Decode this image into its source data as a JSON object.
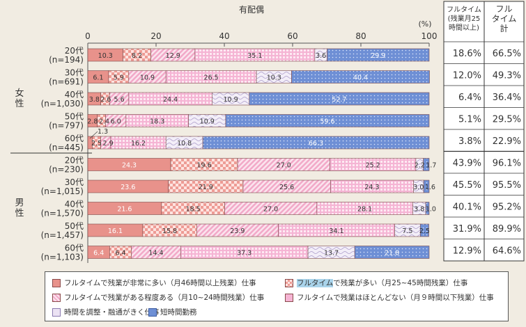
{
  "chart_data": {
    "type": "bar",
    "orientation": "horizontal",
    "stacked": true,
    "title": "有配偶",
    "unit_label": "(%)",
    "xlim": [
      0,
      100
    ],
    "x_ticks": [
      0,
      20,
      40,
      60,
      80,
      100
    ],
    "groups": [
      {
        "label": "女\n性",
        "rows": [
          {
            "age": "20代",
            "n": "(n=194)",
            "values": [
              10.3,
              8.2,
              12.9,
              35.1,
              3.6,
              29.9
            ]
          },
          {
            "age": "30代",
            "n": "(n=691)",
            "values": [
              6.1,
              5.9,
              10.9,
              26.5,
              10.3,
              40.4
            ]
          },
          {
            "age": "40代",
            "n": "(n=1,030)",
            "values": [
              3.8,
              2.6,
              5.6,
              24.4,
              10.9,
              52.7
            ]
          },
          {
            "age": "50代",
            "n": "(n=797)",
            "values": [
              2.8,
              2.4,
              6.0,
              18.3,
              10.9,
              59.6
            ]
          },
          {
            "age": "60代",
            "n": "(n=445)",
            "values": [
              1.3,
              2.5,
              2.9,
              16.2,
              10.8,
              66.3
            ]
          }
        ]
      },
      {
        "label": "男\n性",
        "rows": [
          {
            "age": "20代",
            "n": "(n=230)",
            "values": [
              24.3,
              19.6,
              27.0,
              25.2,
              2.2,
              1.7
            ]
          },
          {
            "age": "30代",
            "n": "(n=1,015)",
            "values": [
              23.6,
              21.9,
              25.6,
              24.3,
              3.0,
              1.6
            ]
          },
          {
            "age": "40代",
            "n": "(n=1,570)",
            "values": [
              21.6,
              18.5,
              27.0,
              28.1,
              3.8,
              1.0
            ]
          },
          {
            "age": "50代",
            "n": "(n=1,457)",
            "values": [
              16.1,
              15.8,
              23.9,
              34.1,
              7.5,
              2.5
            ]
          },
          {
            "age": "60代",
            "n": "(n=1,103)",
            "values": [
              6.4,
              6.4,
              14.4,
              37.3,
              13.7,
              21.8
            ]
          }
        ]
      }
    ],
    "series": [
      {
        "name": "フルタイムで残業が非常に多い（月46時間以上残業）仕事",
        "color": "#e8928b",
        "pattern": "solid"
      },
      {
        "name_highlight": "フルタイム",
        "name": "で残業が多い（月25~45時間残業）仕事",
        "color": "#f0a29c",
        "pattern": "checker"
      },
      {
        "name": "フルタイムで残業がある程度ある（月10~24時間残業）仕事",
        "color": "#f5b9d2",
        "pattern": "diagonal"
      },
      {
        "name": "フルタイムで残業はほとんどない（月９時間以下残業）仕事",
        "color": "#f5b4d4",
        "pattern": "grid"
      },
      {
        "name": "時間を調整・融通がきく仕事",
        "color": "#ece3f4",
        "pattern": "wave"
      },
      {
        "name": "短時間勤務",
        "color": "#6e8fd5",
        "pattern": "dots"
      }
    ],
    "table": {
      "headers": [
        "フルタイム\n(残業月25\n時間以上)",
        "フル\nタイム\n計"
      ],
      "rows": [
        [
          "18.6%",
          "66.5%"
        ],
        [
          "12.0%",
          "49.3%"
        ],
        [
          "6.4%",
          "36.4%"
        ],
        [
          "5.1%",
          "29.5%"
        ],
        [
          "3.8%",
          "22.9%"
        ],
        [
          "43.9%",
          "96.1%"
        ],
        [
          "45.5%",
          "95.5%"
        ],
        [
          "40.1%",
          "95.2%"
        ],
        [
          "31.9%",
          "89.9%"
        ],
        [
          "12.9%",
          "64.6%"
        ]
      ]
    }
  }
}
